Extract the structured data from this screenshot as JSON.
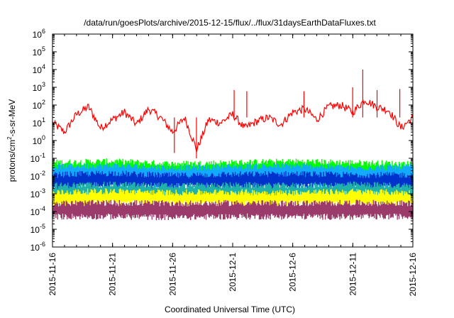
{
  "chart_data": {
    "type": "line",
    "title": "/data/run/goesPlots/archive/2015-12-15/flux/../flux/31daysEarthDataFluxes.txt",
    "xlabel": "Coordinated Universal Time (UTC)",
    "ylabel": {
      "prefix": "protons/cm",
      "sup": "2",
      "suffix": "-s-sr-MeV"
    },
    "y_scale": "log",
    "ylim_exp": [
      -6,
      6
    ],
    "y_ticks": [
      {
        "base": "10",
        "exp": "6"
      },
      {
        "base": "10",
        "exp": "5"
      },
      {
        "base": "10",
        "exp": "4"
      },
      {
        "base": "10",
        "exp": "3"
      },
      {
        "base": "10",
        "exp": "2"
      },
      {
        "base": "10",
        "exp": "1"
      },
      {
        "base": "10",
        "exp": "0"
      },
      {
        "base": "10",
        "exp": "-1"
      },
      {
        "base": "10",
        "exp": "-2"
      },
      {
        "base": "10",
        "exp": "-3"
      },
      {
        "base": "10",
        "exp": "-4"
      },
      {
        "base": "10",
        "exp": "-5"
      },
      {
        "base": "10",
        "exp": "-6"
      }
    ],
    "x_range": [
      "2015-11-16",
      "2015-12-16"
    ],
    "x_ticks": [
      "2015-11-16",
      "2015-11-21",
      "2015-11-26",
      "2015-12-1",
      "2015-12-6",
      "2015-12-11",
      "2015-12-16"
    ],
    "grid": false,
    "series": [
      {
        "color": "#ff0000",
        "band": false,
        "points": [
          [
            "2015-11-16",
            10
          ],
          [
            "2015-11-17",
            3
          ],
          [
            "2015-11-18",
            30
          ],
          [
            "2015-11-19",
            80
          ],
          [
            "2015-11-20",
            5
          ],
          [
            "2015-11-21",
            15
          ],
          [
            "2015-11-22",
            40
          ],
          [
            "2015-11-23",
            8
          ],
          [
            "2015-11-24",
            60
          ],
          [
            "2015-11-25",
            20
          ],
          [
            "2015-11-26",
            3
          ],
          [
            "2015-11-27",
            20
          ],
          [
            "2015-11-28",
            0.3
          ],
          [
            "2015-11-29",
            15
          ],
          [
            "2015-11-30",
            10
          ],
          [
            "2015-12-01",
            30
          ],
          [
            "2015-12-02",
            5
          ],
          [
            "2015-12-03",
            12
          ],
          [
            "2015-12-04",
            20
          ],
          [
            "2015-12-05",
            8
          ],
          [
            "2015-12-06",
            40
          ],
          [
            "2015-12-07",
            60
          ],
          [
            "2015-12-08",
            15
          ],
          [
            "2015-12-09",
            80
          ],
          [
            "2015-12-10",
            100
          ],
          [
            "2015-12-11",
            40
          ],
          [
            "2015-12-12",
            200
          ],
          [
            "2015-12-13",
            80
          ],
          [
            "2015-12-14",
            50
          ],
          [
            "2015-12-15",
            5
          ],
          [
            "2015-12-16",
            20
          ]
        ],
        "spikes": [
          [
            "2015-12-01",
            700
          ],
          [
            "2015-12-02",
            600
          ],
          [
            "2015-12-07",
            600
          ],
          [
            "2015-12-11",
            1000
          ],
          [
            "2015-12-12",
            10000
          ],
          [
            "2015-12-13",
            700
          ],
          [
            "2015-12-15",
            800
          ],
          [
            "2015-11-28",
            0.1
          ],
          [
            "2015-11-26",
            0.2
          ]
        ]
      },
      {
        "color": "#00ff00",
        "band": true,
        "low": [
          0.008,
          0.012,
          0.01,
          0.011,
          0.009,
          0.013,
          0.01
        ],
        "high": [
          0.06,
          0.07,
          0.05,
          0.06,
          0.07,
          0.06,
          0.05
        ]
      },
      {
        "color": "#11aaff",
        "band": true,
        "low": [
          0.0025,
          0.003,
          0.0028,
          0.0026,
          0.0032,
          0.0027,
          0.0025
        ],
        "high": [
          0.035,
          0.04,
          0.03,
          0.035,
          0.04,
          0.03,
          0.035
        ]
      },
      {
        "color": "#0033cc",
        "band": true,
        "low": [
          0.002,
          0.0025,
          0.0022,
          0.002,
          0.0025,
          0.0022,
          0.002
        ],
        "high": [
          0.012,
          0.015,
          0.011,
          0.013,
          0.014,
          0.012,
          0.012
        ]
      },
      {
        "color": "#20b2aa",
        "band": true,
        "low": [
          0.0006,
          0.0007,
          0.0006,
          0.0007,
          0.0006,
          0.0007,
          0.0006
        ],
        "high": [
          0.003,
          0.0035,
          0.003,
          0.0032,
          0.003,
          0.0035,
          0.003
        ]
      },
      {
        "color": "#ffff00",
        "band": true,
        "low": [
          0.00025,
          0.0003,
          0.00028,
          0.00025,
          0.0003,
          0.00026,
          0.00025
        ],
        "high": [
          0.0012,
          0.0015,
          0.0012,
          0.0013,
          0.0012,
          0.0014,
          0.0012
        ]
      },
      {
        "color": "#9b3b6b",
        "band": true,
        "low": [
          5e-05,
          5e-05,
          4.5e-05,
          5e-05,
          5e-05,
          4.8e-05,
          5e-05
        ],
        "high": [
          0.0003,
          0.00032,
          0.0003,
          0.00031,
          0.0003,
          0.00032,
          0.0003
        ]
      }
    ]
  }
}
